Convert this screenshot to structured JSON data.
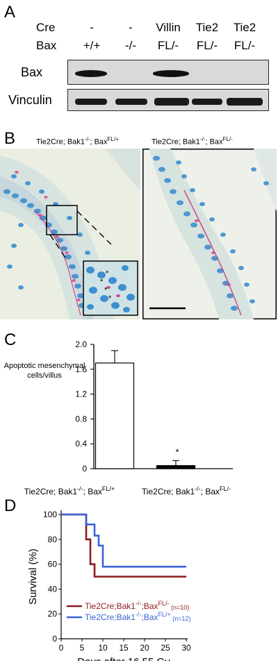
{
  "panelA": {
    "label": "A",
    "row_labels": {
      "cre": "Cre",
      "bax": "Bax"
    },
    "columns": [
      {
        "cre": "-",
        "bax": "+/+"
      },
      {
        "cre": "-",
        "bax": "-/-"
      },
      {
        "cre": "Villin",
        "bax": "FL/-"
      },
      {
        "cre": "Tie2",
        "bax": "FL/-"
      },
      {
        "cre": "Tie2",
        "bax": "FL/-"
      }
    ],
    "blot_labels": {
      "bax": "Bax",
      "vinculin": "Vinculin"
    }
  },
  "panelB": {
    "label": "B",
    "left_caption_main": "Tie2Cre; Bak1",
    "left_caption_sup1": "-/-",
    "left_caption_mid": "; Bax",
    "left_caption_sup2": "FL/+",
    "right_caption_main": "Tie2Cre; Bak1",
    "right_caption_sup1": "-/-",
    "right_caption_mid": "; Bax",
    "right_caption_sup2": "FL/-",
    "inset_markers": [
      "*",
      "*",
      "*",
      "*"
    ]
  },
  "panelC": {
    "label": "C",
    "chart_data": {
      "type": "bar",
      "categories": [
        "Tie2Cre; Bak1-/-; BaxFL/+",
        "Tie2Cre; Bak1-/-; BaxFL/-"
      ],
      "values": [
        1.7,
        0.05
      ],
      "errors": [
        0.2,
        0.08
      ],
      "bar_colors": [
        "#ffffff",
        "#000000"
      ],
      "ylabel": "Apoptotic mesenchymal cells/villus",
      "ylim": [
        0,
        2.0
      ],
      "yticks": [
        "0",
        "0.4",
        "0.8",
        "1.2",
        "1.6",
        "2.0"
      ],
      "annotation": "*"
    }
  },
  "panelD": {
    "label": "D",
    "chart_data": {
      "type": "line",
      "ylabel": "Survival (%)",
      "xlabel": "Days after 16.55 Gy",
      "xlim": [
        0,
        30
      ],
      "ylim": [
        0,
        100
      ],
      "xticks": [
        "0",
        "5",
        "10",
        "15",
        "20",
        "25",
        "30"
      ],
      "yticks": [
        "0",
        "20",
        "40",
        "60",
        "80",
        "100"
      ],
      "series": [
        {
          "name": "Tie2Cre;Bak1-/-;BaxFL/-",
          "n": "(n=10)",
          "color": "#8b1a1a",
          "x": [
            0,
            6,
            6,
            7,
            7,
            8,
            8,
            30
          ],
          "y": [
            100,
            100,
            80,
            80,
            60,
            60,
            50,
            50
          ]
        },
        {
          "name": "Tie2Cre;Bak1-/-;BaxFL/+",
          "n": "(n=12)",
          "color": "#3a62d6",
          "x": [
            0,
            6,
            6,
            8,
            8,
            9,
            9,
            10,
            10,
            30
          ],
          "y": [
            100,
            100,
            92,
            92,
            83,
            83,
            75,
            75,
            58,
            58
          ]
        }
      ]
    }
  }
}
